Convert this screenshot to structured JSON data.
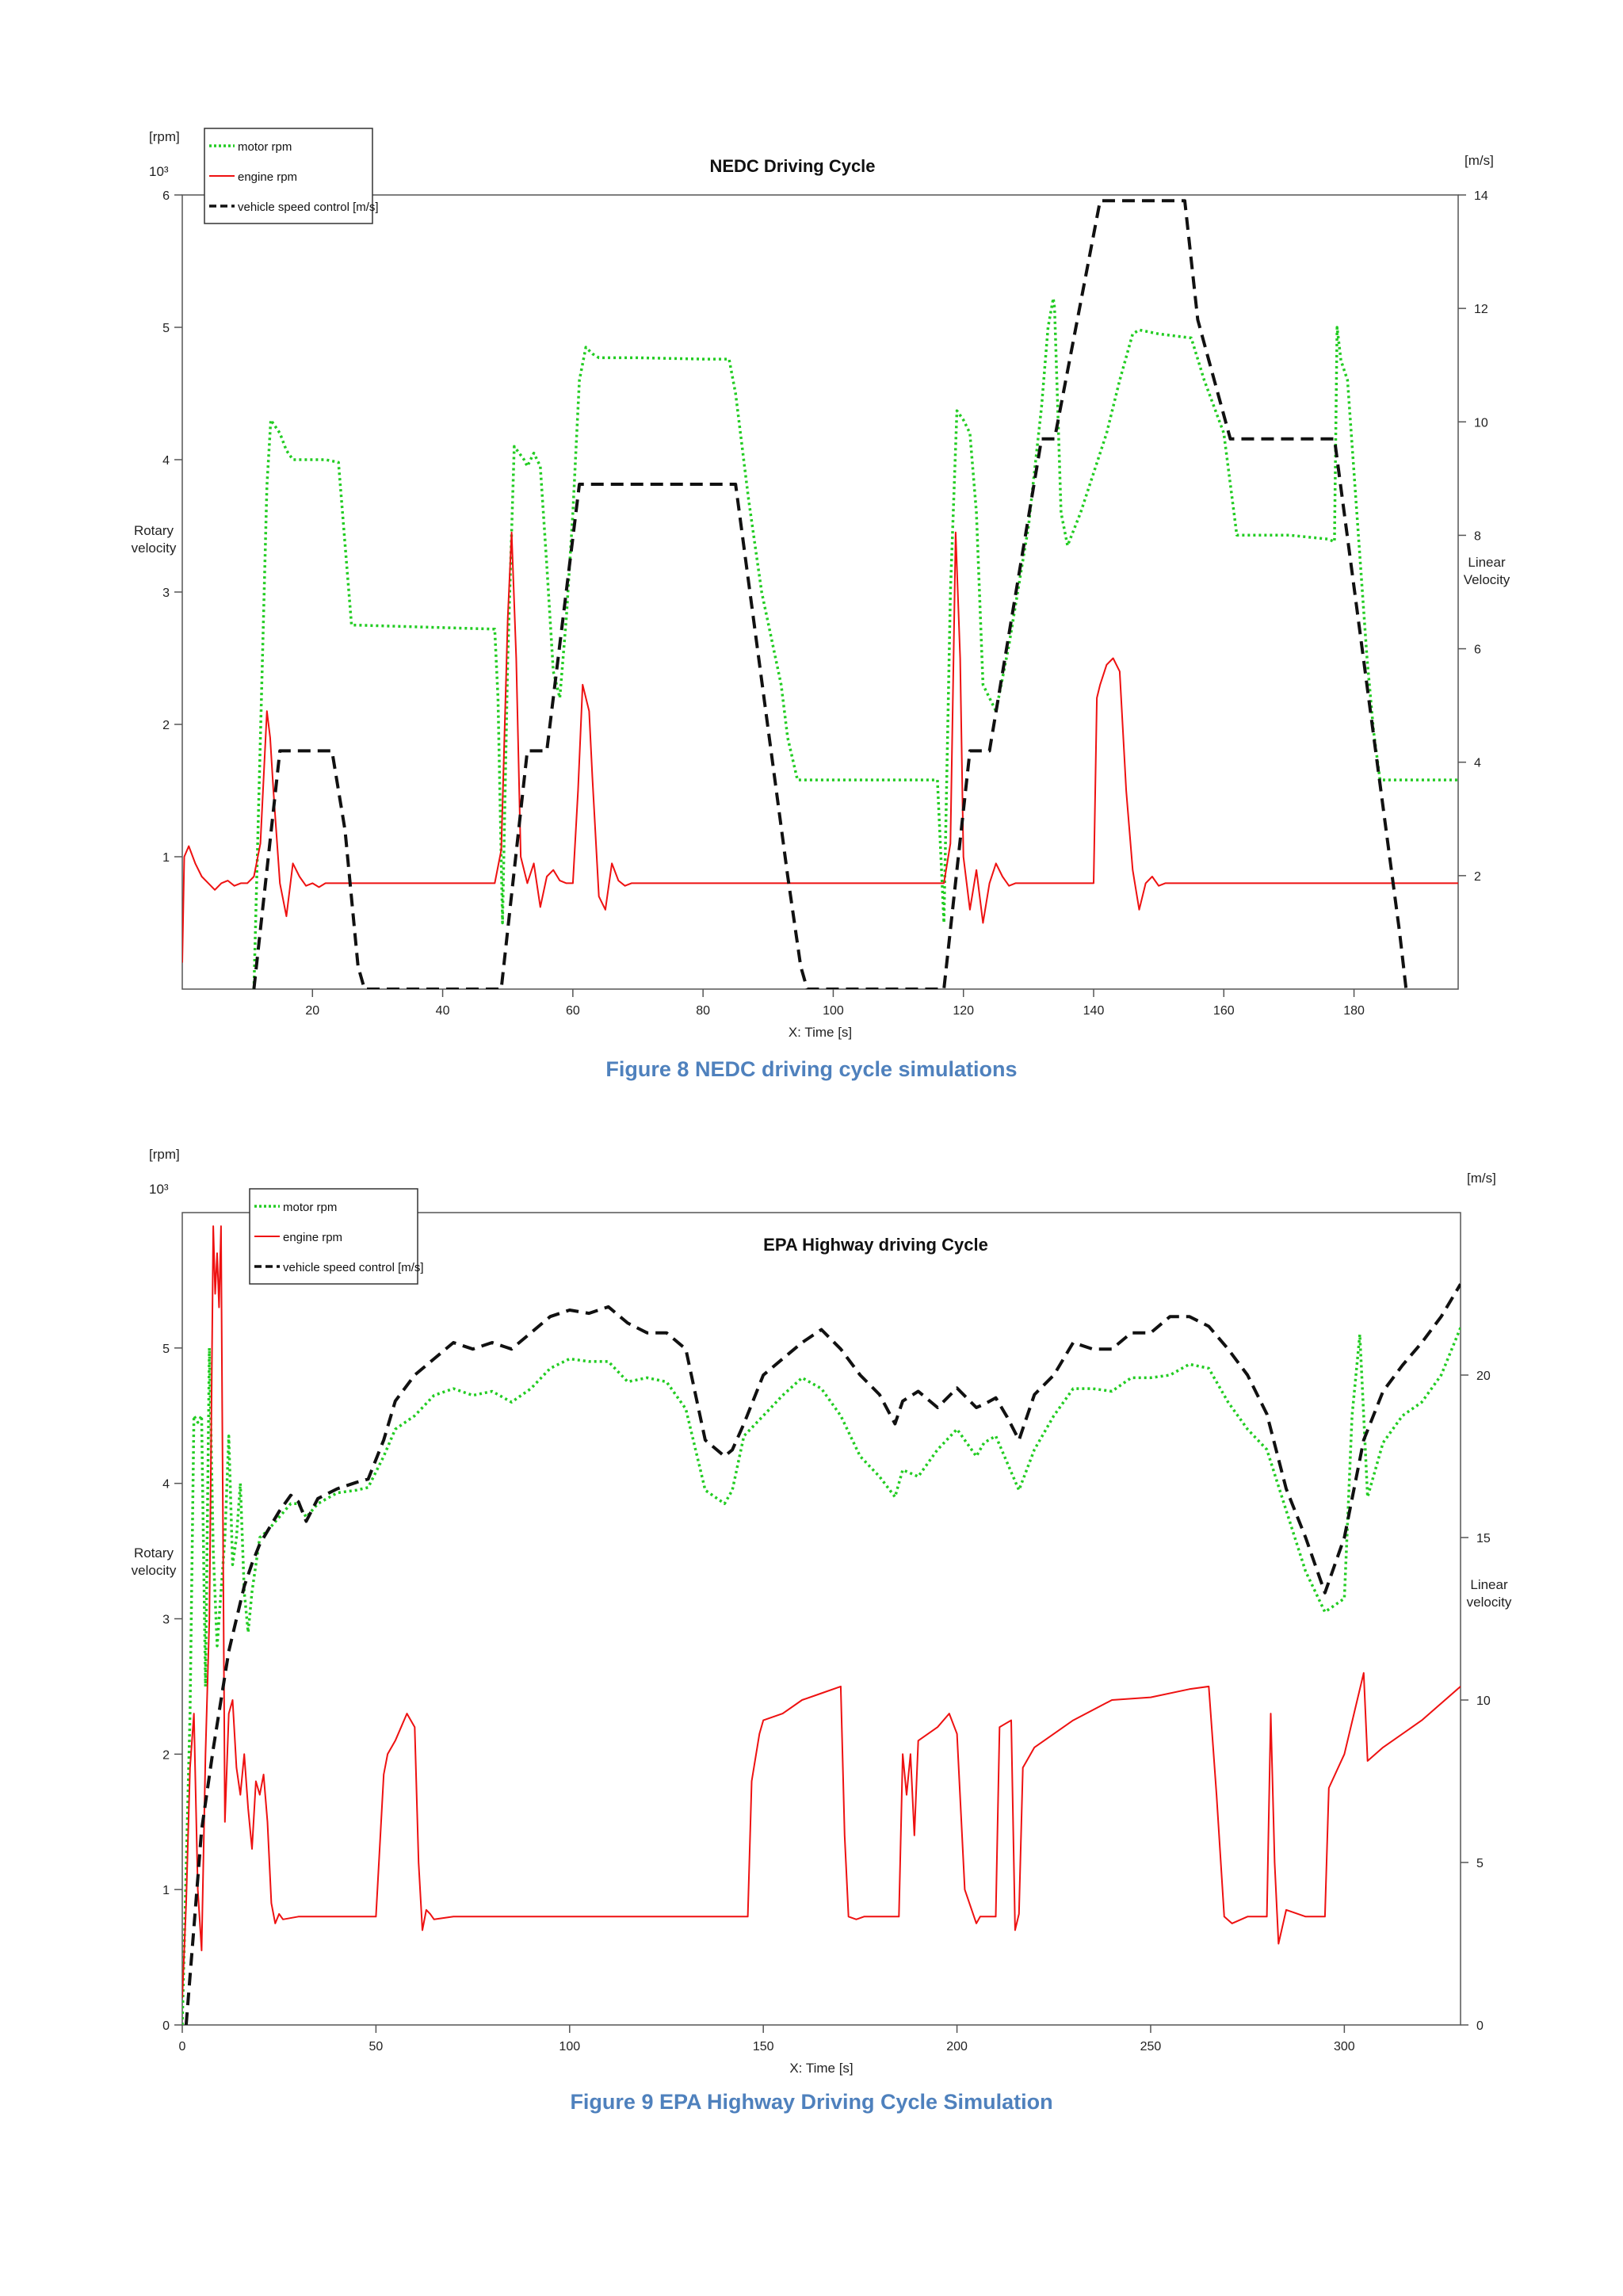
{
  "chart_data": [
    {
      "type": "line",
      "title": "NEDC Driving Cycle",
      "caption": "Figure 8 NEDC driving cycle simulations",
      "xlabel": "X: Time [s]",
      "ylabel_left": "Rotary velocity",
      "ylabel_left_unit": "[rpm]",
      "y_left_multiplier": "10³",
      "ylabel_right": "Linear Velocity",
      "ylabel_right_unit": "[m/s]",
      "xlim": [
        0,
        196
      ],
      "ylim_left": [
        0,
        6
      ],
      "ylim_right": [
        0,
        14
      ],
      "xticks": [
        20,
        40,
        60,
        80,
        100,
        120,
        140,
        160,
        180
      ],
      "yticks_left": [
        1,
        2,
        3,
        4,
        5,
        6
      ],
      "yticks_right": [
        2,
        4,
        6,
        8,
        10,
        12,
        14
      ],
      "legend_position": "top-left",
      "series": [
        {
          "name": "motor rpm",
          "axis": "left",
          "color": "#22cc22",
          "dash": "dotted",
          "x": [
            11,
            12,
            13,
            13.6,
            15,
            16,
            17,
            22,
            24,
            26,
            27,
            48,
            48.5,
            49.2,
            50,
            51,
            52.5,
            53,
            54,
            55,
            56,
            57,
            58,
            59,
            60,
            61,
            62,
            63,
            64,
            70,
            80,
            84,
            85,
            87,
            89,
            92,
            93,
            94.5,
            116,
            117,
            118,
            119,
            120,
            121,
            122,
            123,
            125,
            127,
            130,
            132,
            133,
            133.8,
            134,
            135,
            136,
            138,
            140,
            142,
            144,
            146,
            147,
            150,
            155,
            157,
            160,
            162,
            170,
            176,
            177,
            177.4,
            178,
            179,
            180,
            181,
            182,
            183,
            184,
            196
          ],
          "y": [
            0,
            1.9,
            3.8,
            4.3,
            4.2,
            4.07,
            4.0,
            4.0,
            3.98,
            2.75,
            2.75,
            2.72,
            2.2,
            0.5,
            2.5,
            4.1,
            4.0,
            3.95,
            4.05,
            3.95,
            3.2,
            2.4,
            2.2,
            2.8,
            3.6,
            4.6,
            4.85,
            4.8,
            4.77,
            4.77,
            4.76,
            4.76,
            4.5,
            3.7,
            3.0,
            2.3,
            1.9,
            1.58,
            1.58,
            0.5,
            3.0,
            4.37,
            4.3,
            4.2,
            3.6,
            2.3,
            2.1,
            2.6,
            3.5,
            4.4,
            5.0,
            5.22,
            5.15,
            3.6,
            3.35,
            3.6,
            3.9,
            4.2,
            4.6,
            4.95,
            4.98,
            4.95,
            4.92,
            4.6,
            4.2,
            3.43,
            3.43,
            3.4,
            3.38,
            5.0,
            4.75,
            4.6,
            3.9,
            3.2,
            2.5,
            1.95,
            1.58,
            1.58
          ]
        },
        {
          "name": "engine rpm",
          "axis": "left",
          "color": "#ee1111",
          "dash": "solid",
          "x": [
            0,
            0.3,
            1,
            2,
            3,
            4,
            5,
            6,
            7,
            8,
            9,
            10,
            11,
            12,
            13,
            13.5,
            14,
            15,
            16,
            17,
            18,
            19,
            20,
            21,
            22,
            23,
            48,
            49,
            50,
            50.6,
            51.3,
            52,
            53,
            54,
            55,
            56,
            57,
            58,
            59,
            60,
            60.8,
            61.5,
            62.5,
            63,
            64,
            65,
            66,
            67,
            68,
            69,
            70,
            117,
            118,
            118.8,
            119.5,
            120,
            121,
            122,
            123,
            124,
            125,
            126,
            127,
            128,
            140,
            140.5,
            141,
            142,
            143,
            144,
            145,
            146,
            147,
            148,
            149,
            150,
            151,
            152,
            196
          ],
          "y": [
            0.2,
            1.0,
            1.08,
            0.95,
            0.85,
            0.8,
            0.75,
            0.8,
            0.82,
            0.78,
            0.8,
            0.8,
            0.85,
            1.1,
            2.1,
            1.9,
            1.5,
            0.8,
            0.55,
            0.95,
            0.85,
            0.78,
            0.8,
            0.77,
            0.8,
            0.8,
            0.8,
            1.05,
            2.8,
            3.45,
            2.5,
            1.0,
            0.8,
            0.95,
            0.62,
            0.85,
            0.9,
            0.82,
            0.8,
            0.8,
            1.5,
            2.3,
            2.1,
            1.6,
            0.7,
            0.6,
            0.95,
            0.82,
            0.78,
            0.8,
            0.8,
            0.8,
            1.1,
            3.45,
            2.5,
            1.0,
            0.6,
            0.9,
            0.5,
            0.8,
            0.95,
            0.85,
            0.78,
            0.8,
            0.8,
            2.2,
            2.3,
            2.45,
            2.5,
            2.4,
            1.5,
            0.9,
            0.6,
            0.8,
            0.85,
            0.78,
            0.8,
            0.8,
            0.8
          ]
        },
        {
          "name": "vehicle speed control [m/s]",
          "axis": "right",
          "color": "#111111",
          "dash": "dashed",
          "x": [
            11,
            15,
            16,
            23,
            25,
            27,
            28,
            49,
            53,
            55,
            56,
            61,
            62,
            85,
            93,
            95,
            96,
            117,
            121,
            123,
            124,
            132,
            134,
            141,
            143,
            154,
            156,
            161,
            162,
            175,
            177,
            187,
            188
          ],
          "y": [
            0,
            4.2,
            4.2,
            4.2,
            2.8,
            0.4,
            0,
            0,
            4.2,
            4.2,
            4.2,
            8.9,
            8.9,
            8.9,
            2.0,
            0.4,
            0,
            0,
            4.2,
            4.2,
            4.2,
            9.7,
            9.7,
            13.9,
            13.9,
            13.9,
            11.8,
            9.7,
            9.7,
            9.7,
            9.7,
            1.0,
            0
          ]
        }
      ]
    },
    {
      "type": "line",
      "title": "EPA Highway driving Cycle",
      "caption": "Figure 9 EPA Highway Driving Cycle Simulation",
      "xlabel": "X: Time [s]",
      "ylabel_left": "Rotary velocity",
      "ylabel_left_unit": "[rpm]",
      "y_left_multiplier": "10³",
      "ylabel_right": "Linear velocity",
      "ylabel_right_unit": "[m/s]",
      "xlim": [
        0,
        330
      ],
      "ylim_left": [
        0,
        6
      ],
      "ylim_right": [
        0,
        25
      ],
      "xticks": [
        0,
        50,
        100,
        150,
        200,
        250,
        300
      ],
      "yticks_left": [
        0,
        1,
        2,
        3,
        4,
        5
      ],
      "yticks_right": [
        0,
        5,
        10,
        15,
        20
      ],
      "legend_position": "top-left",
      "series": [
        {
          "name": "motor rpm",
          "axis": "left",
          "color": "#22cc22",
          "dash": "dotted",
          "x": [
            0,
            2,
            3,
            4,
            5,
            6,
            7,
            8,
            9,
            10,
            11,
            12,
            13,
            14,
            15,
            16,
            17,
            18,
            19,
            20,
            22,
            25,
            28,
            30,
            32,
            35,
            40,
            45,
            48,
            52,
            55,
            60,
            65,
            70,
            75,
            80,
            85,
            90,
            95,
            100,
            105,
            110,
            115,
            120,
            125,
            130,
            135,
            140,
            142,
            145,
            150,
            155,
            160,
            165,
            170,
            175,
            180,
            184,
            186,
            190,
            195,
            200,
            205,
            207,
            210,
            213,
            216,
            220,
            225,
            230,
            235,
            240,
            245,
            250,
            255,
            260,
            265,
            270,
            275,
            280,
            285,
            290,
            295,
            300,
            302,
            304,
            306,
            310,
            315,
            320,
            325,
            330
          ],
          "y": [
            0,
            2.3,
            4.5,
            4.45,
            4.5,
            2.5,
            5.0,
            3.5,
            2.8,
            3.2,
            3.6,
            4.35,
            3.4,
            3.6,
            4.0,
            3.2,
            2.9,
            3.2,
            3.4,
            3.6,
            3.65,
            3.75,
            3.85,
            3.85,
            3.75,
            3.85,
            3.93,
            3.95,
            3.97,
            4.2,
            4.4,
            4.5,
            4.65,
            4.7,
            4.65,
            4.68,
            4.6,
            4.7,
            4.85,
            4.92,
            4.9,
            4.9,
            4.75,
            4.78,
            4.75,
            4.55,
            3.95,
            3.85,
            3.95,
            4.35,
            4.5,
            4.65,
            4.78,
            4.7,
            4.5,
            4.2,
            4.05,
            3.9,
            4.1,
            4.05,
            4.25,
            4.4,
            4.2,
            4.3,
            4.35,
            4.15,
            3.95,
            4.25,
            4.5,
            4.7,
            4.7,
            4.68,
            4.78,
            4.78,
            4.8,
            4.88,
            4.85,
            4.6,
            4.4,
            4.25,
            3.8,
            3.35,
            3.05,
            3.15,
            4.5,
            5.1,
            3.9,
            4.3,
            4.5,
            4.6,
            4.8,
            5.15
          ]
        },
        {
          "name": "engine rpm",
          "axis": "left",
          "color": "#ee1111",
          "dash": "solid",
          "x": [
            0,
            1,
            2,
            3,
            4,
            5,
            6,
            7,
            8,
            8.5,
            9,
            9.5,
            10,
            11,
            12,
            13,
            14,
            15,
            16,
            17,
            18,
            19,
            20,
            21,
            22,
            23,
            24,
            25,
            26,
            30,
            40,
            50,
            52,
            53,
            55,
            58,
            60,
            61,
            62,
            63,
            64,
            65,
            70,
            100,
            146,
            147,
            149,
            150,
            155,
            160,
            165,
            170,
            171,
            172,
            174,
            176,
            180,
            185,
            186,
            187,
            188,
            189,
            190,
            195,
            198,
            200,
            202,
            205,
            206,
            210,
            211,
            214,
            215,
            216,
            217,
            220,
            230,
            240,
            250,
            260,
            265,
            267,
            269,
            271,
            275,
            280,
            281,
            282,
            283,
            285,
            290,
            295,
            296,
            300,
            305,
            306,
            310,
            320,
            330
          ],
          "y": [
            0.2,
            0.9,
            1.9,
            2.3,
            1.0,
            0.55,
            2.0,
            3.0,
            5.9,
            5.4,
            5.7,
            5.3,
            5.9,
            1.5,
            2.3,
            2.4,
            1.9,
            1.7,
            2.0,
            1.6,
            1.3,
            1.8,
            1.7,
            1.85,
            1.5,
            0.9,
            0.75,
            0.82,
            0.78,
            0.8,
            0.8,
            0.8,
            1.85,
            2.0,
            2.1,
            2.3,
            2.2,
            1.2,
            0.7,
            0.85,
            0.82,
            0.78,
            0.8,
            0.8,
            0.8,
            1.8,
            2.15,
            2.25,
            2.3,
            2.4,
            2.45,
            2.5,
            1.4,
            0.8,
            0.78,
            0.8,
            0.8,
            0.8,
            2.0,
            1.7,
            2.0,
            1.4,
            2.1,
            2.2,
            2.3,
            2.15,
            1.0,
            0.75,
            0.8,
            0.8,
            2.2,
            2.25,
            0.7,
            0.82,
            1.9,
            2.05,
            2.25,
            2.4,
            2.42,
            2.48,
            2.5,
            1.7,
            0.8,
            0.75,
            0.8,
            0.8,
            2.3,
            1.2,
            0.6,
            0.85,
            0.8,
            0.8,
            1.75,
            2.0,
            2.6,
            1.95,
            2.05,
            2.25,
            2.5
          ]
        },
        {
          "name": "vehicle speed control [m/s]",
          "axis": "right",
          "color": "#111111",
          "dash": "dashed",
          "x": [
            1,
            3,
            5,
            8,
            10,
            12,
            14,
            16,
            18,
            20,
            25,
            28,
            30,
            32,
            35,
            40,
            45,
            48,
            52,
            55,
            60,
            65,
            70,
            75,
            80,
            85,
            90,
            95,
            100,
            105,
            110,
            115,
            120,
            125,
            130,
            135,
            140,
            142,
            145,
            150,
            155,
            160,
            165,
            170,
            175,
            180,
            184,
            186,
            190,
            195,
            200,
            205,
            207,
            210,
            213,
            216,
            220,
            225,
            230,
            235,
            240,
            245,
            250,
            255,
            260,
            265,
            270,
            275,
            280,
            285,
            290,
            295,
            300,
            305,
            310,
            315,
            320,
            325,
            330
          ],
          "y": [
            0,
            3,
            6,
            8.5,
            10,
            11.5,
            12.5,
            13.5,
            14.2,
            14.8,
            15.8,
            16.3,
            16.1,
            15.5,
            16.2,
            16.5,
            16.7,
            16.8,
            18.0,
            19.2,
            20.0,
            20.5,
            21.0,
            20.8,
            21.0,
            20.8,
            21.3,
            21.8,
            22.0,
            21.9,
            22.1,
            21.6,
            21.3,
            21.3,
            20.8,
            18.0,
            17.5,
            17.7,
            18.5,
            20.0,
            20.5,
            21.0,
            21.4,
            20.8,
            20.0,
            19.4,
            18.5,
            19.2,
            19.5,
            19.0,
            19.6,
            19.0,
            19.1,
            19.3,
            18.7,
            18.0,
            19.4,
            20.0,
            21.0,
            20.8,
            20.8,
            21.3,
            21.3,
            21.8,
            21.8,
            21.5,
            20.8,
            20.0,
            18.8,
            16.5,
            15.0,
            13.3,
            15.0,
            18.0,
            19.5,
            20.3,
            21.0,
            21.8,
            22.8
          ]
        }
      ]
    }
  ]
}
